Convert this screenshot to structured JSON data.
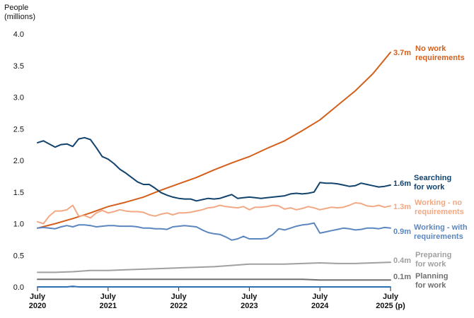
{
  "chart_data": {
    "type": "line",
    "ylabel_lines": [
      "People",
      "(millions)"
    ],
    "ylim": [
      0,
      4
    ],
    "yticks": [
      "0.0",
      "0.5",
      "1.0",
      "1.5",
      "2.0",
      "2.5",
      "3.0",
      "3.5",
      "4.0"
    ],
    "xlim": [
      0,
      60
    ],
    "xticks": [
      {
        "x": 0,
        "lines": [
          "July",
          "2020"
        ]
      },
      {
        "x": 12,
        "lines": [
          "July",
          "2021"
        ]
      },
      {
        "x": 24,
        "lines": [
          "July",
          "2022"
        ]
      },
      {
        "x": 36,
        "lines": [
          "July",
          "2023"
        ]
      },
      {
        "x": 48,
        "lines": [
          "July",
          "2024"
        ]
      },
      {
        "x": 60,
        "lines": [
          "July",
          "2025 (p)"
        ]
      }
    ],
    "grid": false,
    "legend": "right-end labels",
    "series": [
      {
        "name": "No work requirements",
        "label_lines": [
          "No work",
          "requirements"
        ],
        "end_label": "3.7m",
        "color": "#d45f1a",
        "x": [
          0,
          3,
          6,
          9,
          12,
          15,
          18,
          21,
          24,
          27,
          30,
          33,
          36,
          39,
          42,
          45,
          48,
          51,
          54,
          57,
          60
        ],
        "values": [
          0.93,
          1.0,
          1.08,
          1.17,
          1.27,
          1.34,
          1.42,
          1.53,
          1.63,
          1.73,
          1.85,
          1.96,
          2.06,
          2.19,
          2.31,
          2.47,
          2.64,
          2.87,
          3.1,
          3.37,
          3.71
        ]
      },
      {
        "name": "Searching for work",
        "label_lines": [
          "Searching",
          "for work"
        ],
        "end_label": "1.6m",
        "color": "#12436d",
        "x": [
          0,
          1,
          2,
          3,
          4,
          5,
          6,
          7,
          8,
          9,
          10,
          11,
          12,
          13,
          14,
          15,
          16,
          17,
          18,
          19,
          20,
          21,
          22,
          23,
          24,
          25,
          26,
          27,
          28,
          29,
          30,
          31,
          32,
          33,
          34,
          35,
          36,
          37,
          38,
          39,
          40,
          41,
          42,
          43,
          44,
          45,
          46,
          47,
          48,
          49,
          50,
          51,
          52,
          53,
          54,
          55,
          56,
          57,
          58,
          59,
          60
        ],
        "values": [
          2.28,
          2.31,
          2.26,
          2.21,
          2.25,
          2.26,
          2.22,
          2.34,
          2.36,
          2.33,
          2.2,
          2.06,
          2.02,
          1.95,
          1.86,
          1.8,
          1.73,
          1.66,
          1.62,
          1.62,
          1.56,
          1.49,
          1.45,
          1.42,
          1.4,
          1.39,
          1.39,
          1.36,
          1.38,
          1.4,
          1.39,
          1.4,
          1.43,
          1.46,
          1.4,
          1.41,
          1.42,
          1.41,
          1.4,
          1.41,
          1.42,
          1.43,
          1.44,
          1.47,
          1.48,
          1.47,
          1.48,
          1.5,
          1.65,
          1.64,
          1.64,
          1.63,
          1.61,
          1.59,
          1.6,
          1.64,
          1.62,
          1.6,
          1.58,
          1.59,
          1.61
        ]
      },
      {
        "name": "Working - no requirements",
        "label_lines": [
          "Working - no",
          "requirements"
        ],
        "end_label": "1.3m",
        "color": "#f3a884",
        "x": [
          0,
          1,
          2,
          3,
          4,
          5,
          6,
          7,
          8,
          9,
          10,
          11,
          12,
          13,
          14,
          15,
          16,
          17,
          18,
          19,
          20,
          21,
          22,
          23,
          24,
          25,
          26,
          27,
          28,
          29,
          30,
          31,
          32,
          33,
          34,
          35,
          36,
          37,
          38,
          39,
          40,
          41,
          42,
          43,
          44,
          45,
          46,
          47,
          48,
          49,
          50,
          51,
          52,
          53,
          54,
          55,
          56,
          57,
          58,
          59,
          60
        ],
        "values": [
          1.03,
          1.0,
          1.12,
          1.2,
          1.2,
          1.22,
          1.29,
          1.12,
          1.13,
          1.09,
          1.17,
          1.21,
          1.17,
          1.19,
          1.22,
          1.2,
          1.19,
          1.19,
          1.18,
          1.14,
          1.12,
          1.15,
          1.17,
          1.14,
          1.17,
          1.17,
          1.18,
          1.2,
          1.22,
          1.25,
          1.26,
          1.29,
          1.27,
          1.26,
          1.25,
          1.27,
          1.22,
          1.26,
          1.26,
          1.27,
          1.29,
          1.28,
          1.23,
          1.25,
          1.22,
          1.24,
          1.27,
          1.25,
          1.22,
          1.24,
          1.26,
          1.25,
          1.26,
          1.29,
          1.33,
          1.32,
          1.28,
          1.27,
          1.29,
          1.26,
          1.28
        ]
      },
      {
        "name": "Working - with requirements",
        "label_lines": [
          "Working - with",
          "requirements"
        ],
        "end_label": "0.9m",
        "color": "#5b86c0",
        "x": [
          0,
          1,
          2,
          3,
          4,
          5,
          6,
          7,
          8,
          9,
          10,
          11,
          12,
          13,
          14,
          15,
          16,
          17,
          18,
          19,
          20,
          21,
          22,
          23,
          24,
          25,
          26,
          27,
          28,
          29,
          30,
          31,
          32,
          33,
          34,
          35,
          36,
          37,
          38,
          39,
          40,
          41,
          42,
          43,
          44,
          45,
          46,
          47,
          48,
          49,
          50,
          51,
          52,
          53,
          54,
          55,
          56,
          57,
          58,
          59,
          60
        ],
        "values": [
          0.93,
          0.94,
          0.93,
          0.92,
          0.95,
          0.97,
          0.95,
          0.98,
          0.98,
          0.97,
          0.95,
          0.96,
          0.97,
          0.97,
          0.96,
          0.96,
          0.96,
          0.95,
          0.93,
          0.93,
          0.92,
          0.92,
          0.91,
          0.95,
          0.96,
          0.97,
          0.96,
          0.95,
          0.9,
          0.86,
          0.84,
          0.83,
          0.79,
          0.74,
          0.76,
          0.8,
          0.76,
          0.76,
          0.76,
          0.77,
          0.83,
          0.92,
          0.9,
          0.93,
          0.96,
          0.98,
          0.99,
          1.01,
          0.85,
          0.87,
          0.89,
          0.91,
          0.93,
          0.92,
          0.9,
          0.91,
          0.93,
          0.93,
          0.92,
          0.94,
          0.93
        ]
      },
      {
        "name": "Preparing for work",
        "label_lines": [
          "Preparing",
          "for work"
        ],
        "end_label": "0.4m",
        "color": "#a0a0a0",
        "x": [
          0,
          3,
          6,
          9,
          12,
          15,
          18,
          21,
          24,
          27,
          30,
          33,
          36,
          39,
          42,
          45,
          48,
          51,
          54,
          57,
          60
        ],
        "values": [
          0.23,
          0.23,
          0.24,
          0.26,
          0.26,
          0.27,
          0.28,
          0.29,
          0.3,
          0.31,
          0.32,
          0.34,
          0.36,
          0.36,
          0.36,
          0.37,
          0.38,
          0.37,
          0.37,
          0.38,
          0.39
        ]
      },
      {
        "name": "Planning for work",
        "label_lines": [
          "Planning",
          "for work"
        ],
        "end_label": "0.1m",
        "color": "#707070",
        "x": [
          0,
          3,
          6,
          9,
          12,
          15,
          18,
          21,
          24,
          27,
          30,
          33,
          36,
          39,
          42,
          45,
          48,
          51,
          54,
          57,
          60
        ],
        "values": [
          0.12,
          0.12,
          0.12,
          0.12,
          0.12,
          0.12,
          0.12,
          0.12,
          0.12,
          0.12,
          0.12,
          0.12,
          0.12,
          0.12,
          0.12,
          0.12,
          0.11,
          0.11,
          0.11,
          0.11,
          0.11
        ]
      },
      {
        "name": "Series 7",
        "label_lines": [],
        "end_label": "",
        "color": "#2f6fb0",
        "x": [
          0,
          5,
          6,
          7,
          10,
          20,
          30,
          40,
          50,
          60
        ],
        "values": [
          0.0,
          0.0,
          0.01,
          0.0,
          0.0,
          0.0,
          0.0,
          0.0,
          0.0,
          0.0
        ]
      }
    ]
  }
}
